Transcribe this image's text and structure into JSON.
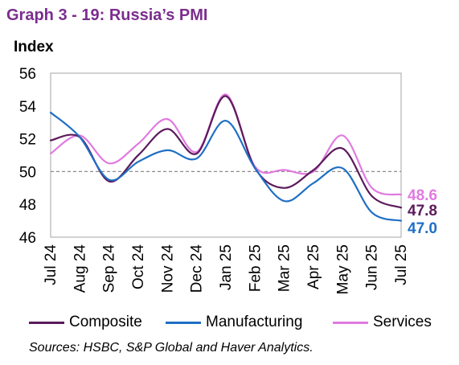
{
  "title": "Graph 3 - 19: Russia’s PMI",
  "source": "Sources: HSBC, S&P Global and Haver Analytics.",
  "chart_data": {
    "type": "line",
    "ylabel": "Index",
    "ylim": [
      46,
      56
    ],
    "yticks": [
      "46",
      "48",
      "50",
      "52",
      "54",
      "56"
    ],
    "categories": [
      "Jul 24",
      "Aug 24",
      "Sep 24",
      "Oct 24",
      "Nov 24",
      "Dec 24",
      "Jan 25",
      "Feb 25",
      "Mar 25",
      "Apr 25",
      "May 25",
      "Jun 25",
      "Jul 25"
    ],
    "reference_line": 50,
    "grid": false,
    "legend_position": "bottom",
    "series": [
      {
        "name": "Composite",
        "color": "#5b1a5b",
        "values": [
          51.9,
          52.1,
          49.4,
          51.0,
          52.6,
          51.1,
          54.6,
          50.2,
          49.0,
          50.1,
          51.4,
          48.5,
          47.8
        ],
        "end_label": "47.8"
      },
      {
        "name": "Manufacturing",
        "color": "#1f6fc5",
        "values": [
          53.6,
          52.1,
          49.5,
          50.6,
          51.3,
          50.8,
          53.1,
          50.2,
          48.2,
          49.3,
          50.2,
          47.5,
          47.0
        ],
        "end_label": "47.0"
      },
      {
        "name": "Services",
        "color": "#e07ae0",
        "values": [
          51.1,
          52.2,
          50.5,
          51.7,
          53.2,
          51.2,
          54.7,
          50.3,
          50.1,
          50.0,
          52.2,
          49.0,
          48.6
        ],
        "end_label": "48.6"
      }
    ]
  }
}
